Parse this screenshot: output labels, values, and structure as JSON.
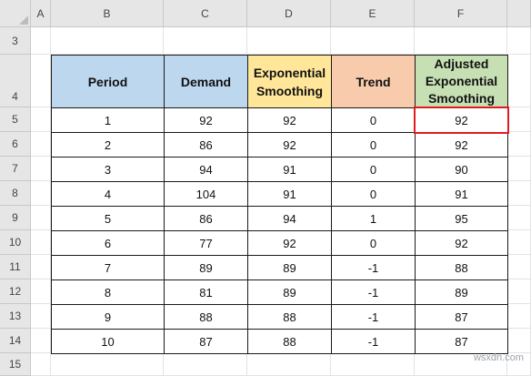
{
  "grid": {
    "column_headers": [
      "A",
      "B",
      "C",
      "D",
      "E",
      "F"
    ],
    "row_headers": [
      "3",
      "4",
      "5",
      "6",
      "7",
      "8",
      "9",
      "10",
      "11",
      "12",
      "13",
      "14",
      "15"
    ]
  },
  "table": {
    "headers": [
      {
        "label": "Period",
        "color": "#bdd7ee"
      },
      {
        "label": "Demand",
        "color": "#bdd7ee"
      },
      {
        "label": "Exponential Smoothing",
        "color": "#ffe699"
      },
      {
        "label": "Trend",
        "color": "#f8cbad"
      },
      {
        "label": "Adjusted Exponential Smoothing",
        "color": "#c6e0b4"
      }
    ],
    "rows": [
      [
        "1",
        "92",
        "92",
        "0",
        "92"
      ],
      [
        "2",
        "86",
        "92",
        "0",
        "92"
      ],
      [
        "3",
        "94",
        "91",
        "0",
        "90"
      ],
      [
        "4",
        "104",
        "91",
        "0",
        "91"
      ],
      [
        "5",
        "86",
        "94",
        "1",
        "95"
      ],
      [
        "6",
        "77",
        "92",
        "0",
        "92"
      ],
      [
        "7",
        "89",
        "89",
        "-1",
        "88"
      ],
      [
        "8",
        "81",
        "89",
        "-1",
        "89"
      ],
      [
        "9",
        "88",
        "88",
        "-1",
        "87"
      ],
      [
        "10",
        "87",
        "88",
        "-1",
        "87"
      ]
    ]
  },
  "selection": {
    "cell": "F5",
    "color": "#e11b22"
  },
  "watermark": "wsxdn.com"
}
